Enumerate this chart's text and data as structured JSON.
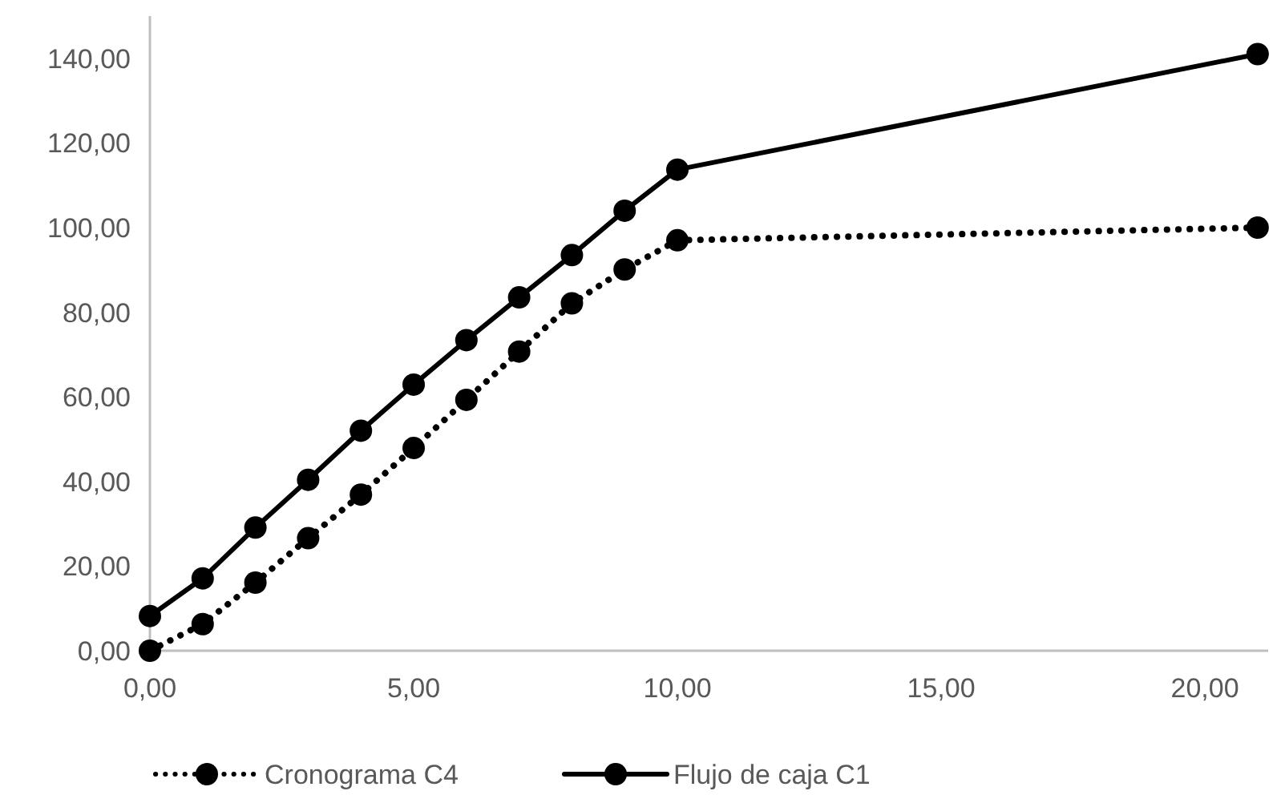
{
  "chart_data": {
    "type": "line",
    "x": [
      0,
      1,
      2,
      3,
      4,
      5,
      6,
      7,
      8,
      9,
      10,
      21
    ],
    "series": [
      {
        "name": "Cronograma C4",
        "color": "#000000",
        "line_style": "dotted",
        "values": [
          0,
          6.3,
          16.1,
          26.6,
          36.9,
          47.9,
          59.3,
          70.7,
          82.1,
          90.1,
          97,
          100
        ]
      },
      {
        "name": "Flujo de caja C1",
        "color": "#000000",
        "line_style": "solid",
        "values": [
          8.2,
          17.1,
          29.1,
          40.4,
          52,
          62.9,
          73.4,
          83.5,
          93.5,
          104,
          113.7,
          141
        ]
      }
    ],
    "xlim": [
      0,
      21.2
    ],
    "xticks": [
      {
        "value": 0,
        "label": "0,00"
      },
      {
        "value": 5,
        "label": "5,00"
      },
      {
        "value": 10,
        "label": "10,00"
      },
      {
        "value": 15,
        "label": "15,00"
      },
      {
        "value": 20,
        "label": "20,00"
      }
    ],
    "ylim": [
      0,
      150
    ],
    "yticks": [
      {
        "value": 0,
        "label": "0,00"
      },
      {
        "value": 20,
        "label": "20,00"
      },
      {
        "value": 40,
        "label": "40,00"
      },
      {
        "value": 60,
        "label": "60,00"
      },
      {
        "value": 80,
        "label": "80,00"
      },
      {
        "value": 100,
        "label": "100,00"
      },
      {
        "value": 120,
        "label": "120,00"
      },
      {
        "value": 140,
        "label": "140,00"
      }
    ],
    "grid": false,
    "marker": "circle",
    "legend": "bottom"
  }
}
